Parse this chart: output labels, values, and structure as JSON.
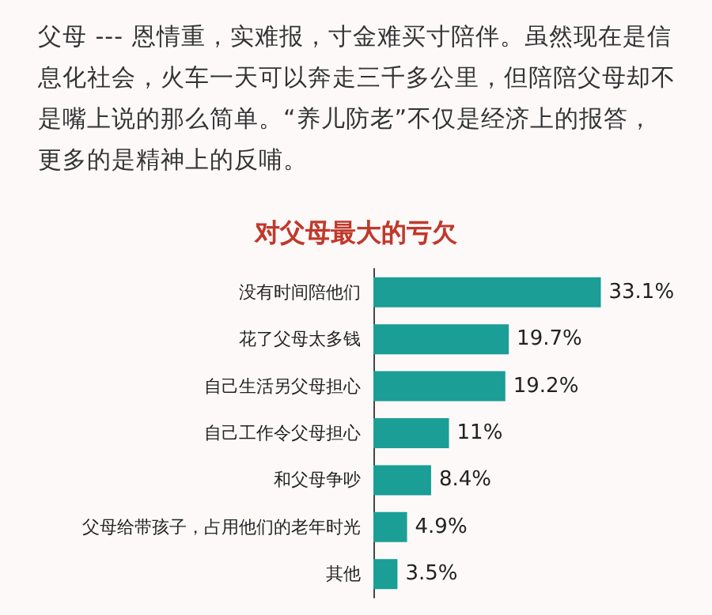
{
  "chart_data": {
    "type": "bar",
    "orientation": "horizontal",
    "title": "对父母最大的亏欠",
    "annotations": [
      "父母 --- 恩情重，实难报，寸金难买寸陪伴。虽然现在是信息化社会，火车一天可以奔走三千多公里，但陪陪父母却不是嘴上说的那么简单。“养儿防老”不仅是经济上的报答，更多的是精神上的反哺。"
    ],
    "categories": [
      "没有时间陪他们",
      "花了父母太多钱",
      "自己生活另父母担心",
      "自己工作令父母担心",
      "和父母争吵",
      "父母给带孩子，占用他们的老年时光",
      "其他"
    ],
    "values": [
      33.1,
      19.7,
      19.2,
      11,
      8.4,
      4.9,
      3.5
    ],
    "value_labels": [
      "33.1%",
      "19.7%",
      "19.2%",
      "11%",
      "8.4%",
      "4.9%",
      "3.5%"
    ],
    "color": "#1a9e96"
  }
}
